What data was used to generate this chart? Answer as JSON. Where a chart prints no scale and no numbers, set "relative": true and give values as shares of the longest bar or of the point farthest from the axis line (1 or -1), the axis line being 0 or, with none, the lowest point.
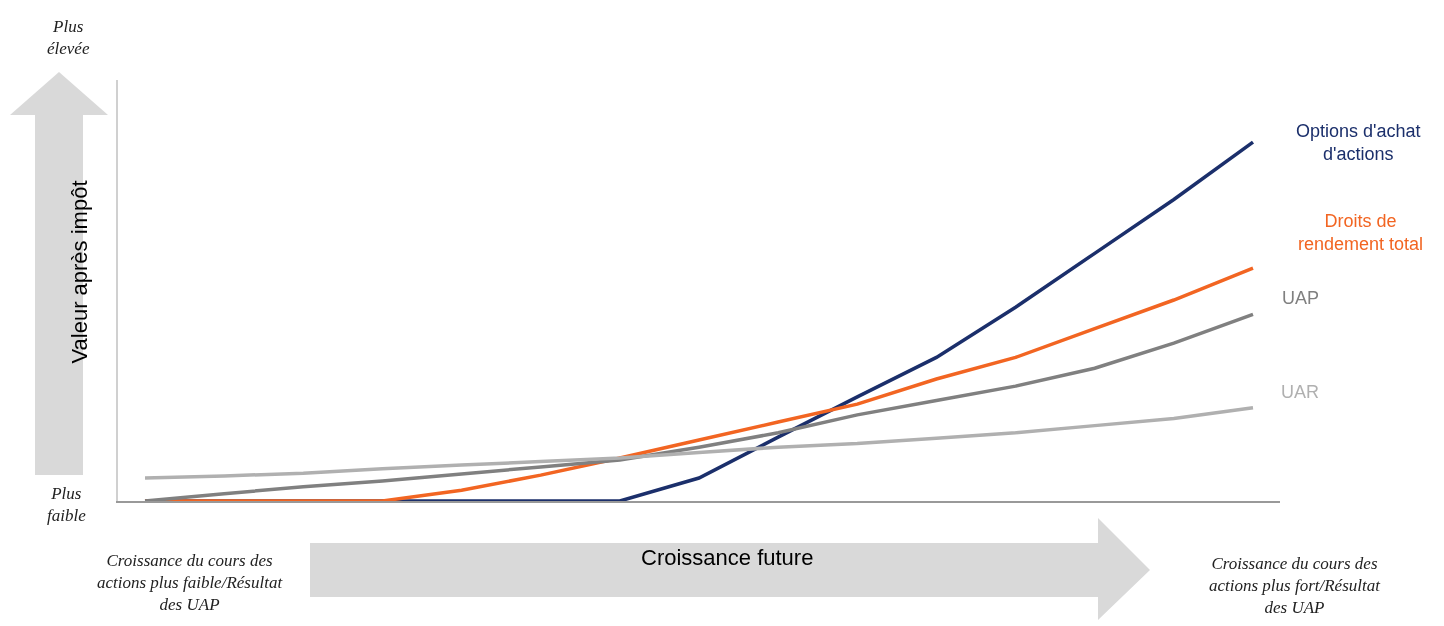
{
  "chart_data": {
    "type": "line",
    "relative": true,
    "xlabel": "Croissance future",
    "ylabel": "Valeur après impôt",
    "categories": [
      null,
      null,
      null,
      null,
      null,
      null,
      null,
      null,
      null,
      null,
      null,
      null,
      null,
      null,
      null
    ],
    "series": [
      {
        "name": "Options d'achat d'actions",
        "color": "#1b2f6b",
        "values": [
          0,
          0,
          0,
          0,
          0,
          0,
          0,
          0.064,
          0.178,
          0.29,
          0.4,
          0.54,
          0.69,
          0.84,
          1
        ]
      },
      {
        "name": "Droits de rendement total",
        "color": "#f26522",
        "values": [
          0,
          0,
          0,
          0,
          0.03,
          0.072,
          0.12,
          0.17,
          0.22,
          0.27,
          0.34,
          0.4,
          0.48,
          0.56,
          0.649
        ]
      },
      {
        "name": "UAP",
        "color": "#808080",
        "values": [
          0,
          0.02,
          0.04,
          0.056,
          0.075,
          0.095,
          0.114,
          0.15,
          0.19,
          0.24,
          0.28,
          0.32,
          0.37,
          0.44,
          0.52
        ]
      },
      {
        "name": "UAR",
        "color": "#b0b0b0",
        "values": [
          0.064,
          0.07,
          0.077,
          0.09,
          0.1,
          0.11,
          0.12,
          0.135,
          0.15,
          0.16,
          0.175,
          0.19,
          0.21,
          0.23,
          0.26
        ]
      }
    ],
    "annotations": [
      "Plus élevée",
      "Plus faible",
      "Croissance du cours des actions plus faible/Résultat des UAP",
      "Croissance du cours des actions plus fort/Résultat des UAP"
    ],
    "legend": false,
    "line_style": "solid",
    "marker": "none"
  }
}
